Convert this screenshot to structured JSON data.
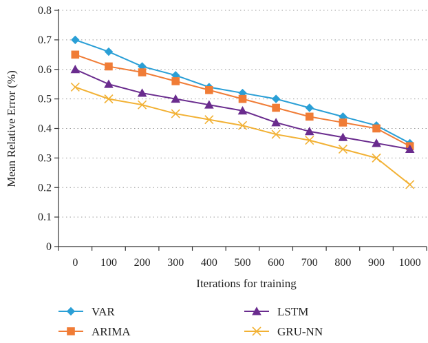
{
  "chart_data": {
    "type": "line",
    "title": "",
    "xlabel": "Iterations for training",
    "ylabel": "Mean Relative Error (%)",
    "categories": [
      "0",
      "100",
      "200",
      "300",
      "400",
      "500",
      "600",
      "700",
      "800",
      "900",
      "1000"
    ],
    "ylim": [
      0,
      0.8
    ],
    "yticks": [
      "0",
      "0.1",
      "0.2",
      "0.3",
      "0.4",
      "0.5",
      "0.6",
      "0.7",
      "0.8"
    ],
    "grid": "horizontal-dotted",
    "legend_position": "bottom",
    "series": [
      {
        "name": "VAR",
        "color": "#2a9fd6",
        "marker": "diamond",
        "values": [
          0.7,
          0.66,
          0.61,
          0.58,
          0.54,
          0.52,
          0.5,
          0.47,
          0.44,
          0.41,
          0.35
        ]
      },
      {
        "name": "ARIMA",
        "color": "#f07c36",
        "marker": "square",
        "values": [
          0.65,
          0.61,
          0.59,
          0.56,
          0.53,
          0.5,
          0.47,
          0.44,
          0.42,
          0.4,
          0.34
        ]
      },
      {
        "name": "LSTM",
        "color": "#6a2c8e",
        "marker": "triangle",
        "values": [
          0.6,
          0.55,
          0.52,
          0.5,
          0.48,
          0.46,
          0.42,
          0.39,
          0.37,
          0.35,
          0.33
        ]
      },
      {
        "name": "GRU-NN",
        "color": "#f2b134",
        "marker": "x",
        "values": [
          0.54,
          0.5,
          0.48,
          0.45,
          0.43,
          0.41,
          0.38,
          0.36,
          0.33,
          0.3,
          0.21
        ]
      }
    ]
  }
}
